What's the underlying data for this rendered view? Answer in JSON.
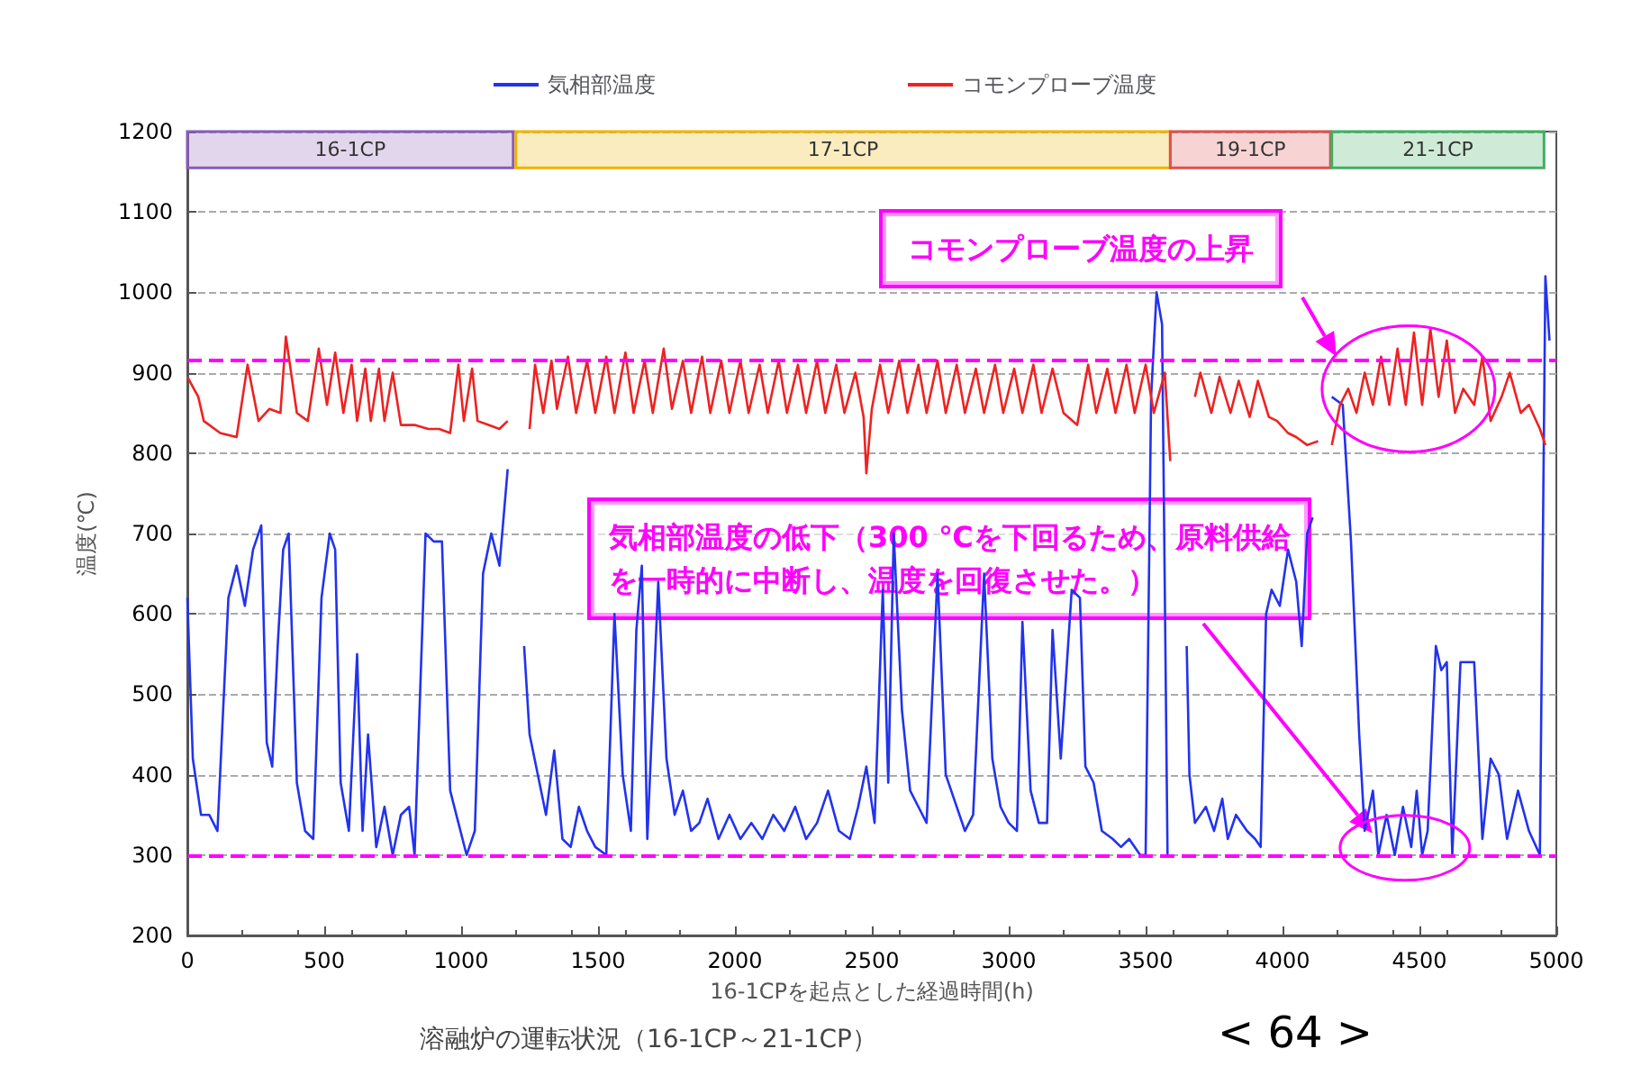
{
  "chart_data": {
    "type": "line",
    "title": "溶融炉の運転状況（16-1CP～21-1CP）",
    "xlabel": "16-1CPを起点とした経過時間(h)",
    "ylabel": "温度(℃)",
    "xlim": [
      0,
      5000
    ],
    "xticks": [
      0,
      500,
      1000,
      1500,
      2000,
      2500,
      3000,
      3500,
      4000,
      4500,
      5000
    ],
    "ylim": [
      200,
      1200
    ],
    "yticks": [
      200,
      300,
      400,
      500,
      600,
      700,
      800,
      900,
      1000,
      1100,
      1200
    ],
    "grid": "y",
    "legend": "top",
    "marker": "none",
    "line_style": "solid",
    "series": [
      {
        "name": "気相部温度",
        "color": "#2233ee",
        "x": [
          0,
          20,
          50,
          80,
          110,
          150,
          180,
          210,
          240,
          270,
          290,
          310,
          330,
          350,
          370,
          400,
          430,
          460,
          490,
          520,
          540,
          560,
          590,
          620,
          640,
          660,
          690,
          720,
          750,
          780,
          810,
          830,
          870,
          900,
          930,
          960,
          990,
          1020,
          1050,
          1080,
          1110,
          1140,
          1170,
          1190,
          1230,
          1250,
          1280,
          1310,
          1340,
          1370,
          1400,
          1430,
          1460,
          1490,
          1530,
          1560,
          1590,
          1620,
          1640,
          1660,
          1680,
          1720,
          1750,
          1780,
          1810,
          1840,
          1870,
          1900,
          1940,
          1980,
          2020,
          2060,
          2100,
          2140,
          2180,
          2220,
          2260,
          2300,
          2340,
          2380,
          2420,
          2450,
          2480,
          2510,
          2540,
          2560,
          2580,
          2610,
          2640,
          2670,
          2700,
          2740,
          2770,
          2800,
          2840,
          2870,
          2910,
          2940,
          2970,
          3000,
          3030,
          3050,
          3080,
          3110,
          3140,
          3160,
          3190,
          3230,
          3260,
          3280,
          3310,
          3340,
          3380,
          3410,
          3440,
          3480,
          3500,
          3520,
          3540,
          3560,
          3580,
          3620,
          3650,
          3660,
          3680,
          3720,
          3750,
          3780,
          3800,
          3830,
          3870,
          3900,
          3920,
          3940,
          3960,
          3990,
          4020,
          4050,
          4070,
          4090,
          4110,
          4150,
          4180,
          4220,
          4250,
          4280,
          4300,
          4330,
          4350,
          4380,
          4410,
          4440,
          4470,
          4490,
          4510,
          4530,
          4560,
          4580,
          4600,
          4620,
          4650,
          4680,
          4700,
          4730,
          4760,
          4790,
          4820,
          4860,
          4900,
          4940,
          4960,
          4975
        ],
        "values": [
          620,
          420,
          350,
          350,
          330,
          620,
          660,
          610,
          680,
          710,
          440,
          410,
          560,
          680,
          700,
          390,
          330,
          320,
          620,
          700,
          680,
          390,
          330,
          550,
          330,
          450,
          310,
          360,
          300,
          350,
          360,
          300,
          700,
          690,
          690,
          380,
          340,
          300,
          330,
          650,
          700,
          660,
          780,
          null,
          560,
          450,
          400,
          350,
          430,
          320,
          310,
          360,
          330,
          310,
          300,
          600,
          400,
          330,
          580,
          660,
          320,
          640,
          420,
          350,
          380,
          330,
          340,
          370,
          320,
          350,
          320,
          340,
          320,
          350,
          330,
          360,
          320,
          340,
          380,
          330,
          320,
          360,
          410,
          340,
          630,
          390,
          700,
          480,
          380,
          360,
          340,
          650,
          400,
          370,
          330,
          350,
          650,
          420,
          360,
          340,
          330,
          590,
          380,
          340,
          340,
          580,
          420,
          630,
          620,
          410,
          390,
          330,
          320,
          310,
          320,
          300,
          300,
          870,
          1000,
          960,
          300,
          null,
          560,
          400,
          340,
          360,
          330,
          370,
          320,
          350,
          330,
          320,
          310,
          600,
          630,
          610,
          680,
          640,
          560,
          700,
          720,
          null,
          870,
          860,
          690,
          450,
          330,
          380,
          300,
          350,
          300,
          360,
          310,
          380,
          300,
          330,
          560,
          530,
          540,
          300,
          540,
          540,
          540,
          320,
          420,
          400,
          320,
          380,
          330,
          300,
          1020,
          940
        ]
      },
      {
        "name": "コモンプローブ温度",
        "color": "#ee2222",
        "x": [
          0,
          40,
          60,
          120,
          180,
          220,
          260,
          300,
          340,
          360,
          400,
          440,
          480,
          510,
          540,
          570,
          600,
          620,
          650,
          670,
          700,
          720,
          750,
          780,
          830,
          880,
          920,
          960,
          990,
          1010,
          1040,
          1060,
          1100,
          1140,
          1170,
          1210,
          1250,
          1270,
          1300,
          1330,
          1350,
          1390,
          1420,
          1460,
          1490,
          1530,
          1560,
          1600,
          1630,
          1670,
          1700,
          1740,
          1770,
          1810,
          1840,
          1880,
          1910,
          1950,
          1980,
          2020,
          2050,
          2090,
          2120,
          2160,
          2190,
          2230,
          2260,
          2300,
          2330,
          2370,
          2400,
          2440,
          2470,
          2480,
          2500,
          2530,
          2560,
          2600,
          2630,
          2670,
          2700,
          2740,
          2770,
          2810,
          2840,
          2880,
          2910,
          2950,
          2980,
          3020,
          3050,
          3090,
          3120,
          3160,
          3200,
          3250,
          3290,
          3320,
          3360,
          3390,
          3430,
          3460,
          3500,
          3530,
          3570,
          3590,
          3640,
          3680,
          3700,
          3740,
          3770,
          3810,
          3840,
          3880,
          3910,
          3950,
          3980,
          4020,
          4050,
          4090,
          4130,
          4160,
          4180,
          4210,
          4240,
          4270,
          4300,
          4330,
          4360,
          4390,
          4420,
          4450,
          4480,
          4510,
          4540,
          4570,
          4600,
          4630,
          4660,
          4700,
          4730,
          4760,
          4800,
          4830,
          4870,
          4900,
          4940,
          4960
        ],
        "values": [
          895,
          870,
          840,
          825,
          820,
          910,
          840,
          855,
          850,
          945,
          850,
          840,
          930,
          860,
          925,
          850,
          910,
          840,
          905,
          840,
          905,
          840,
          900,
          835,
          835,
          830,
          830,
          825,
          910,
          840,
          905,
          840,
          835,
          830,
          840,
          null,
          830,
          910,
          850,
          915,
          855,
          920,
          850,
          915,
          850,
          920,
          850,
          925,
          850,
          915,
          850,
          930,
          855,
          915,
          850,
          920,
          850,
          915,
          850,
          915,
          850,
          910,
          850,
          915,
          850,
          910,
          850,
          915,
          850,
          910,
          850,
          900,
          845,
          775,
          855,
          910,
          850,
          915,
          850,
          910,
          850,
          915,
          850,
          910,
          850,
          905,
          850,
          910,
          850,
          905,
          850,
          910,
          850,
          905,
          850,
          835,
          910,
          850,
          905,
          850,
          910,
          850,
          910,
          850,
          900,
          790,
          null,
          870,
          900,
          850,
          895,
          850,
          890,
          845,
          890,
          845,
          840,
          825,
          820,
          810,
          815,
          null,
          810,
          860,
          880,
          850,
          900,
          860,
          920,
          860,
          930,
          860,
          950,
          860,
          955,
          870,
          940,
          850,
          880,
          860,
          920,
          840,
          870,
          900,
          850,
          860,
          830,
          810
        ]
      }
    ],
    "ref_lines": [
      {
        "axis": "y",
        "value": 915,
        "color": "#ff00ff",
        "line_style": "dashed"
      },
      {
        "axis": "y",
        "value": 300,
        "color": "#ff00ff",
        "line_style": "dashed"
      }
    ],
    "bands": [
      {
        "axis": "x",
        "from": 0,
        "to": 1190,
        "label": "16-1CP",
        "color": "#8a5cb8"
      },
      {
        "axis": "x",
        "from": 1200,
        "to": 3590,
        "label": "17-1CP",
        "color": "#f0b400"
      },
      {
        "axis": "x",
        "from": 3590,
        "to": 4175,
        "label": "19-1CP",
        "color": "#e05050"
      },
      {
        "axis": "x",
        "from": 4180,
        "to": 4955,
        "label": "21-1CP",
        "color": "#40b060"
      }
    ],
    "annotations": [
      "コモンプローブ温度の上昇",
      "気相部温度の低下（300 ℃を下回るため、原料供給を一時的に中断し、温度を回復させた。）",
      "< 64 >"
    ]
  }
}
